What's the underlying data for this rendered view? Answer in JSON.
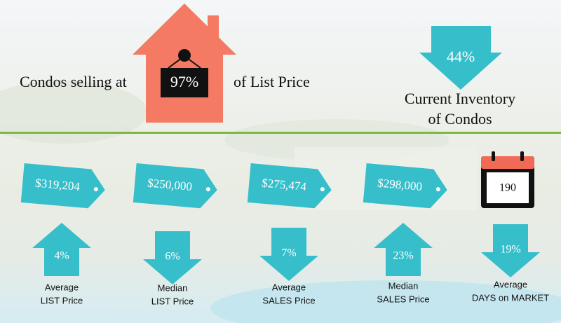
{
  "headline": {
    "prefix": "Condos selling at",
    "value": "97%",
    "suffix": "of List Price"
  },
  "inventory": {
    "value": "44%",
    "label": [
      "Current Inventory",
      "of Condos"
    ]
  },
  "prices": [
    "$319,204",
    "$250,000",
    "$275,474",
    "$298,000"
  ],
  "days": "190",
  "changes": [
    {
      "value": "4%",
      "direction": "up",
      "label": [
        "Average",
        "LIST Price"
      ]
    },
    {
      "value": "6%",
      "direction": "down",
      "label": [
        "Median",
        "LIST Price"
      ]
    },
    {
      "value": "7%",
      "direction": "down",
      "label": [
        "Average",
        "SALES Price"
      ]
    },
    {
      "value": "23%",
      "direction": "up",
      "label": [
        "Median",
        "SALES Price"
      ]
    },
    {
      "value": "19%",
      "direction": "down",
      "label": [
        "Average",
        "DAYS on MARKET"
      ]
    }
  ]
}
